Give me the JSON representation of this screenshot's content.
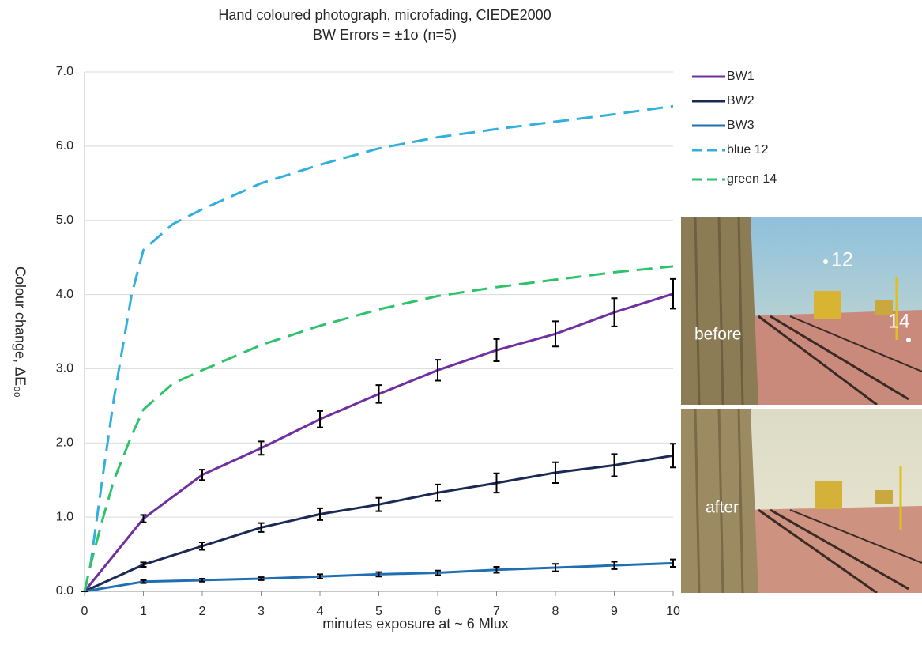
{
  "chart_data": {
    "type": "line",
    "title": "Hand coloured photograph, microfading, CIEDE2000",
    "subtitle": "BW Errors = ±1σ (n=5)",
    "x_label": "minutes exposure at ~ 6 Mlux",
    "y_label": "Colour change, ΔE₀₀",
    "xlim": [
      0,
      10
    ],
    "ylim": [
      0,
      7
    ],
    "xticks": [
      0,
      1,
      2,
      3,
      4,
      5,
      6,
      7,
      8,
      9,
      10
    ],
    "yticks": [
      {
        "value": 0,
        "label": "0.0"
      },
      {
        "value": 1,
        "label": "1.0"
      },
      {
        "value": 2,
        "label": "2.0"
      },
      {
        "value": 3,
        "label": "3.0"
      },
      {
        "value": 4,
        "label": "4.0"
      },
      {
        "value": 5,
        "label": "5.0"
      },
      {
        "value": 6,
        "label": "6.0"
      },
      {
        "value": 7,
        "label": "7.0"
      }
    ],
    "grid": true,
    "legend": "right",
    "series": [
      {
        "name": "BW1",
        "color": "#7030a0",
        "dashed": false,
        "x": [
          0,
          1,
          2,
          3,
          4,
          5,
          6,
          7,
          8,
          9,
          10
        ],
        "values": [
          0,
          0.98,
          1.57,
          1.93,
          2.32,
          2.66,
          2.98,
          3.25,
          3.47,
          3.76,
          4.01
        ],
        "errors": [
          0,
          0.05,
          0.07,
          0.09,
          0.11,
          0.12,
          0.14,
          0.15,
          0.17,
          0.19,
          0.2
        ]
      },
      {
        "name": "BW2",
        "color": "#1b2a55",
        "dashed": false,
        "x": [
          0,
          1,
          2,
          3,
          4,
          5,
          6,
          7,
          8,
          9,
          10
        ],
        "values": [
          0,
          0.36,
          0.61,
          0.86,
          1.04,
          1.17,
          1.33,
          1.46,
          1.6,
          1.7,
          1.83
        ],
        "errors": [
          0,
          0.03,
          0.05,
          0.06,
          0.08,
          0.09,
          0.11,
          0.13,
          0.14,
          0.15,
          0.16
        ]
      },
      {
        "name": "BW3",
        "color": "#1f6fb2",
        "dashed": false,
        "x": [
          0,
          1,
          2,
          3,
          4,
          5,
          6,
          7,
          8,
          9,
          10
        ],
        "values": [
          0,
          0.13,
          0.15,
          0.17,
          0.2,
          0.23,
          0.25,
          0.29,
          0.32,
          0.35,
          0.38
        ],
        "errors": [
          0,
          0.02,
          0.02,
          0.02,
          0.03,
          0.03,
          0.03,
          0.04,
          0.05,
          0.05,
          0.05
        ]
      },
      {
        "name": "blue 12",
        "color": "#31b0de",
        "dashed": true,
        "x": [
          0,
          0.1,
          0.3,
          0.5,
          0.8,
          1,
          1.5,
          2,
          3,
          4,
          5,
          6,
          7,
          8,
          9,
          10
        ],
        "values": [
          0,
          0.35,
          1.5,
          2.6,
          4.0,
          4.6,
          4.95,
          5.15,
          5.5,
          5.75,
          5.97,
          6.12,
          6.23,
          6.33,
          6.43,
          6.54
        ]
      },
      {
        "name": "green 14",
        "color": "#2ec36a",
        "dashed": true,
        "x": [
          0,
          0.1,
          0.3,
          0.5,
          0.8,
          1,
          1.5,
          2,
          3,
          4,
          5,
          6,
          7,
          8,
          9,
          10
        ],
        "values": [
          0,
          0.35,
          0.95,
          1.5,
          2.1,
          2.45,
          2.8,
          2.98,
          3.32,
          3.58,
          3.8,
          3.98,
          4.1,
          4.2,
          4.3,
          4.38
        ]
      }
    ]
  },
  "annotations": {
    "before": "before",
    "after": "after",
    "label_12": "12",
    "label_14": "14"
  }
}
